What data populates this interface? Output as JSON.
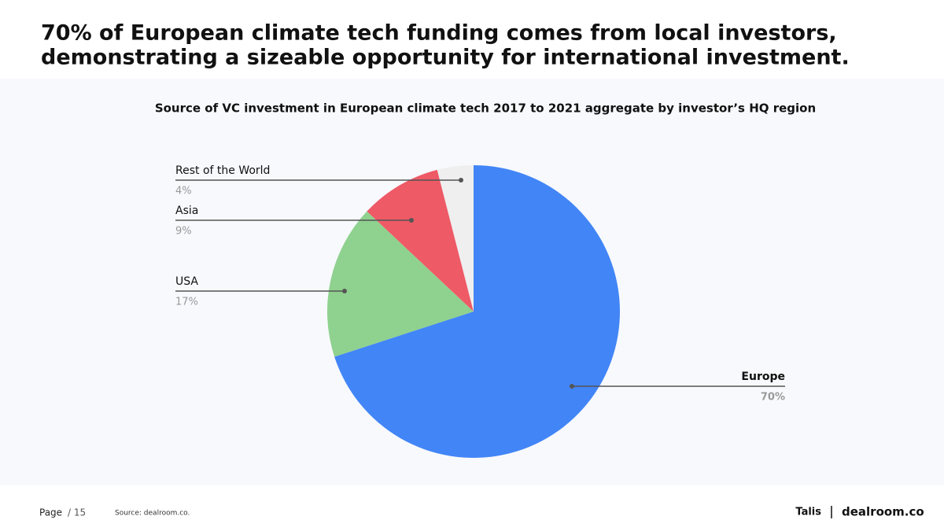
{
  "headline": [
    "70% of European climate tech funding comes from local investors,",
    "demonstrating a sizeable opportunity for international investment."
  ],
  "chart_data": {
    "type": "pie",
    "title": "Source of VC investment in European climate tech 2017 to 2021 aggregate by investor’s HQ region",
    "categories": [
      "Europe",
      "USA",
      "Asia",
      "Rest of the World"
    ],
    "values": [
      70,
      17,
      9,
      4
    ],
    "value_labels": [
      "70%",
      "17%",
      "9%",
      "4%"
    ],
    "colors": [
      "#4285f7",
      "#8fd18f",
      "#ee5a66",
      "#efefef"
    ]
  },
  "footer": {
    "page": "Page",
    "page_number": "/ 15",
    "source": "Source: dealroom.co.",
    "brand": "Talis",
    "partner": "dealroom.co"
  }
}
